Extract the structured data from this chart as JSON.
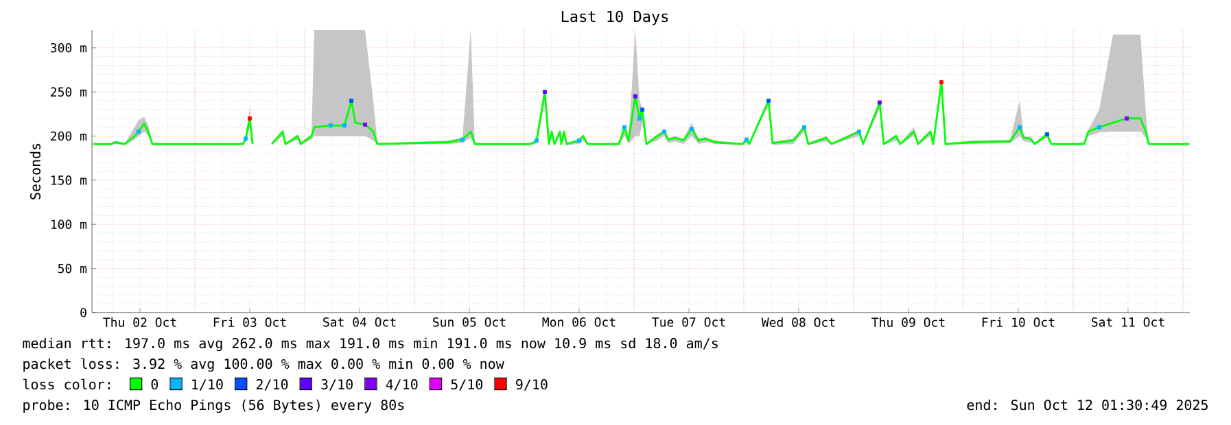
{
  "chart_data": {
    "type": "line",
    "title": "Last 10 Days",
    "ylabel": "Seconds",
    "legend_title": "loss color:",
    "legend": "bottom",
    "grid": true,
    "xlim": [
      "2025-10-02T01:30",
      "2025-10-12T01:30"
    ],
    "xticks": [
      {
        "value": "2025-10-02T12:00",
        "label": "Thu 02 Oct"
      },
      {
        "value": "2025-10-03T00:00",
        "label": null
      },
      {
        "value": "2025-10-03T12:00",
        "label": "Fri 03 Oct"
      },
      {
        "value": "2025-10-04T00:00",
        "label": null
      },
      {
        "value": "2025-10-04T12:00",
        "label": "Sat 04 Oct"
      },
      {
        "value": "2025-10-05T00:00",
        "label": null
      },
      {
        "value": "2025-10-05T12:00",
        "label": "Sun 05 Oct"
      },
      {
        "value": "2025-10-06T00:00",
        "label": null
      },
      {
        "value": "2025-10-06T12:00",
        "label": "Mon 06 Oct"
      },
      {
        "value": "2025-10-07T00:00",
        "label": null
      },
      {
        "value": "2025-10-07T12:00",
        "label": "Tue 07 Oct"
      },
      {
        "value": "2025-10-08T00:00",
        "label": null
      },
      {
        "value": "2025-10-08T12:00",
        "label": "Wed 08 Oct"
      },
      {
        "value": "2025-10-09T00:00",
        "label": null
      },
      {
        "value": "2025-10-09T12:00",
        "label": "Thu 09 Oct"
      },
      {
        "value": "2025-10-10T00:00",
        "label": null
      },
      {
        "value": "2025-10-10T12:00",
        "label": "Fri 10 Oct"
      },
      {
        "value": "2025-10-11T00:00",
        "label": null
      },
      {
        "value": "2025-10-11T12:00",
        "label": "Sat 11 Oct"
      },
      {
        "value": "2025-10-12T00:00",
        "label": null
      }
    ],
    "ylim": [
      0,
      320
    ],
    "yticks": [
      0,
      {
        "value": 50,
        "label": "50 m"
      },
      {
        "value": 100,
        "label": "100 m"
      },
      {
        "value": 150,
        "label": "150 m"
      },
      {
        "value": 200,
        "label": "200 m"
      },
      {
        "value": 250,
        "label": "250 m"
      },
      {
        "value": 300,
        "label": "300 m"
      }
    ],
    "series": [
      {
        "name": "0",
        "color": "#00ff00",
        "x": [
          "2025-10-02T01:48",
          "2025-10-02T05:42",
          "2025-10-02T06:36",
          "2025-10-02T08:42",
          "2025-10-02T10:48",
          "2025-10-02T11:42",
          "2025-10-02T12:54",
          "2025-10-02T13:48",
          "2025-10-02T14:42",
          "2025-10-03T10:30",
          "2025-10-03T11:06",
          "2025-10-03T12:00",
          "2025-10-03T12:36",
          "2025-10-03T14:42",
          "2025-10-03T16:48",
          "2025-10-03T19:12",
          "2025-10-03T19:48",
          "2025-10-03T22:30",
          "2025-10-03T23:06",
          "2025-10-04T01:30",
          "2025-10-04T02:06",
          "2025-10-04T05:42",
          "2025-10-04T08:42",
          "2025-10-04T10:12",
          "2025-10-04T11:06",
          "2025-10-04T13:12",
          "2025-10-04T15:00",
          "2025-10-04T15:54",
          "2025-10-05T07:12",
          "2025-10-05T10:30",
          "2025-10-05T12:18",
          "2025-10-05T13:12",
          "2025-10-06T01:30",
          "2025-10-06T02:42",
          "2025-10-06T04:30",
          "2025-10-06T05:24",
          "2025-10-06T06:00",
          "2025-10-06T06:36",
          "2025-10-06T07:48",
          "2025-10-06T08:06",
          "2025-10-06T08:42",
          "2025-10-06T09:18",
          "2025-10-06T12:00",
          "2025-10-06T12:54",
          "2025-10-06T13:48",
          "2025-10-06T20:42",
          "2025-10-06T21:18",
          "2025-10-06T21:54",
          "2025-10-06T22:48",
          "2025-10-07T00:18",
          "2025-10-07T01:12",
          "2025-10-07T01:48",
          "2025-10-07T02:42",
          "2025-10-07T05:06",
          "2025-10-07T06:36",
          "2025-10-07T07:30",
          "2025-10-07T09:00",
          "2025-10-07T10:48",
          "2025-10-07T12:36",
          "2025-10-07T14:06",
          "2025-10-07T15:36",
          "2025-10-07T17:42",
          "2025-10-07T23:42",
          "2025-10-08T00:36",
          "2025-10-08T01:12",
          "2025-10-08T05:24",
          "2025-10-08T06:18",
          "2025-10-08T10:48",
          "2025-10-08T13:12",
          "2025-10-08T14:06",
          "2025-10-08T18:00",
          "2025-10-08T19:12",
          "2025-10-09T01:12",
          "2025-10-09T02:06",
          "2025-10-09T05:42",
          "2025-10-09T06:36",
          "2025-10-09T09:18",
          "2025-10-09T10:12",
          "2025-10-09T13:12",
          "2025-10-09T14:06",
          "2025-10-09T16:48",
          "2025-10-09T17:24",
          "2025-10-09T19:12",
          "2025-10-09T20:06",
          "2025-10-10T01:48",
          "2025-10-10T10:12",
          "2025-10-10T12:18",
          "2025-10-10T13:12",
          "2025-10-10T14:42",
          "2025-10-10T15:36",
          "2025-10-10T18:18",
          "2025-10-10T19:12",
          "2025-10-11T02:24",
          "2025-10-11T03:18",
          "2025-10-11T05:42",
          "2025-10-11T08:42",
          "2025-10-11T11:42",
          "2025-10-11T14:42",
          "2025-10-11T15:54",
          "2025-10-11T16:30",
          "2025-10-12T01:24"
        ],
        "values": [
          191,
          191,
          193,
          191,
          200,
          205,
          214,
          205,
          191,
          191,
          197,
          220,
          191,
          null,
          191,
          205,
          191,
          200,
          191,
          200,
          210,
          212,
          212,
          240,
          215,
          213,
          205,
          191,
          193,
          196,
          205,
          191,
          191,
          195,
          250,
          191,
          205,
          191,
          205,
          191,
          205,
          191,
          195,
          200,
          191,
          191,
          200,
          210,
          195,
          245,
          220,
          230,
          191,
          200,
          205,
          196,
          198,
          195,
          208,
          195,
          197,
          193,
          191,
          196,
          191,
          240,
          192,
          195,
          210,
          191,
          198,
          191,
          205,
          191,
          238,
          191,
          200,
          191,
          205,
          191,
          205,
          191,
          261,
          191,
          193,
          194,
          210,
          198,
          197,
          191,
          202,
          191,
          191,
          205,
          210,
          215,
          220,
          220,
          205,
          191,
          191
        ],
        "upper": [
          192,
          192,
          195,
          192,
          210,
          218,
          222,
          212,
          192,
          192,
          200,
          232,
          192,
          null,
          192,
          207,
          192,
          202,
          192,
          202,
          320,
          320,
          320,
          320,
          320,
          320,
          240,
          192,
          195,
          198,
          320,
          192,
          192,
          197,
          255,
          192,
          207,
          192,
          207,
          192,
          207,
          192,
          197,
          202,
          192,
          192,
          202,
          212,
          197,
          320,
          240,
          232,
          192,
          202,
          207,
          198,
          200,
          197,
          215,
          197,
          199,
          195,
          192,
          198,
          192,
          242,
          194,
          197,
          212,
          192,
          200,
          192,
          207,
          192,
          240,
          192,
          202,
          192,
          210,
          192,
          207,
          192,
          262,
          192,
          195,
          196,
          240,
          200,
          199,
          192,
          204,
          192,
          192,
          207,
          230,
          315,
          315,
          315,
          225,
          192,
          192
        ],
        "lower": [
          190,
          190,
          191,
          190,
          196,
          200,
          205,
          200,
          190,
          190,
          193,
          210,
          190,
          null,
          190,
          200,
          190,
          196,
          190,
          196,
          200,
          200,
          200,
          200,
          200,
          200,
          195,
          190,
          191,
          192,
          198,
          190,
          190,
          191,
          240,
          190,
          200,
          190,
          200,
          190,
          200,
          190,
          191,
          195,
          190,
          190,
          195,
          200,
          191,
          200,
          200,
          215,
          190,
          195,
          200,
          192,
          194,
          191,
          200,
          191,
          193,
          191,
          190,
          192,
          190,
          235,
          190,
          191,
          205,
          190,
          194,
          190,
          200,
          190,
          230,
          190,
          195,
          190,
          200,
          190,
          200,
          190,
          255,
          190,
          191,
          192,
          200,
          194,
          193,
          190,
          198,
          190,
          190,
          200,
          204,
          205,
          205,
          205,
          198,
          190,
          190
        ]
      },
      {
        "name": "1/10",
        "type": "scatter",
        "color": "#00b4ff",
        "x": [
          "2025-10-02T11:42",
          "2025-10-03T11:06",
          "2025-10-04T05:42",
          "2025-10-04T08:42",
          "2025-10-05T10:30",
          "2025-10-06T02:42",
          "2025-10-06T12:00",
          "2025-10-06T21:54",
          "2025-10-07T01:12",
          "2025-10-07T06:36",
          "2025-10-07T12:36",
          "2025-10-08T00:36",
          "2025-10-08T13:12",
          "2025-10-09T01:12",
          "2025-10-10T12:18",
          "2025-10-11T05:42"
        ],
        "values": [
          205,
          197,
          212,
          212,
          196,
          195,
          195,
          210,
          220,
          205,
          208,
          196,
          210,
          205,
          210,
          210
        ]
      },
      {
        "name": "2/10",
        "type": "scatter",
        "color": "#0050ff",
        "x": [
          "2025-10-04T10:12",
          "2025-10-07T01:48",
          "2025-10-08T05:24",
          "2025-10-10T18:18"
        ],
        "values": [
          240,
          230,
          240,
          202
        ]
      },
      {
        "name": "3/10",
        "type": "scatter",
        "color": "#6000ff",
        "x": [
          "2025-10-06T04:30",
          "2025-10-07T00:18",
          "2025-10-09T05:42"
        ],
        "values": [
          250,
          245,
          238
        ]
      },
      {
        "name": "4/10",
        "type": "scatter",
        "color": "#8000ff",
        "x": [
          "2025-10-04T13:12",
          "2025-10-11T11:42"
        ],
        "values": [
          213,
          220
        ]
      },
      {
        "name": "5/10",
        "type": "scatter",
        "color": "#e000ff"
      },
      {
        "name": "9/10",
        "type": "scatter",
        "color": "#ff0000",
        "x": [
          "2025-10-03T12:00",
          "2025-10-09T19:12"
        ],
        "values": [
          220,
          261
        ]
      }
    ],
    "annotations": [
      "median rtt:  197.0 ms avg  262.0 ms max  191.0 ms min  191.0 ms now  10.9 ms sd  18.0   am/s",
      "packet loss: 3.92 % avg  100.00 % max  0.00 % min  0.00 % now",
      "probe:        10 ICMP Echo Pings (56 Bytes) every 80s",
      "end: Sun Oct 12 01:30:49 2025"
    ]
  }
}
